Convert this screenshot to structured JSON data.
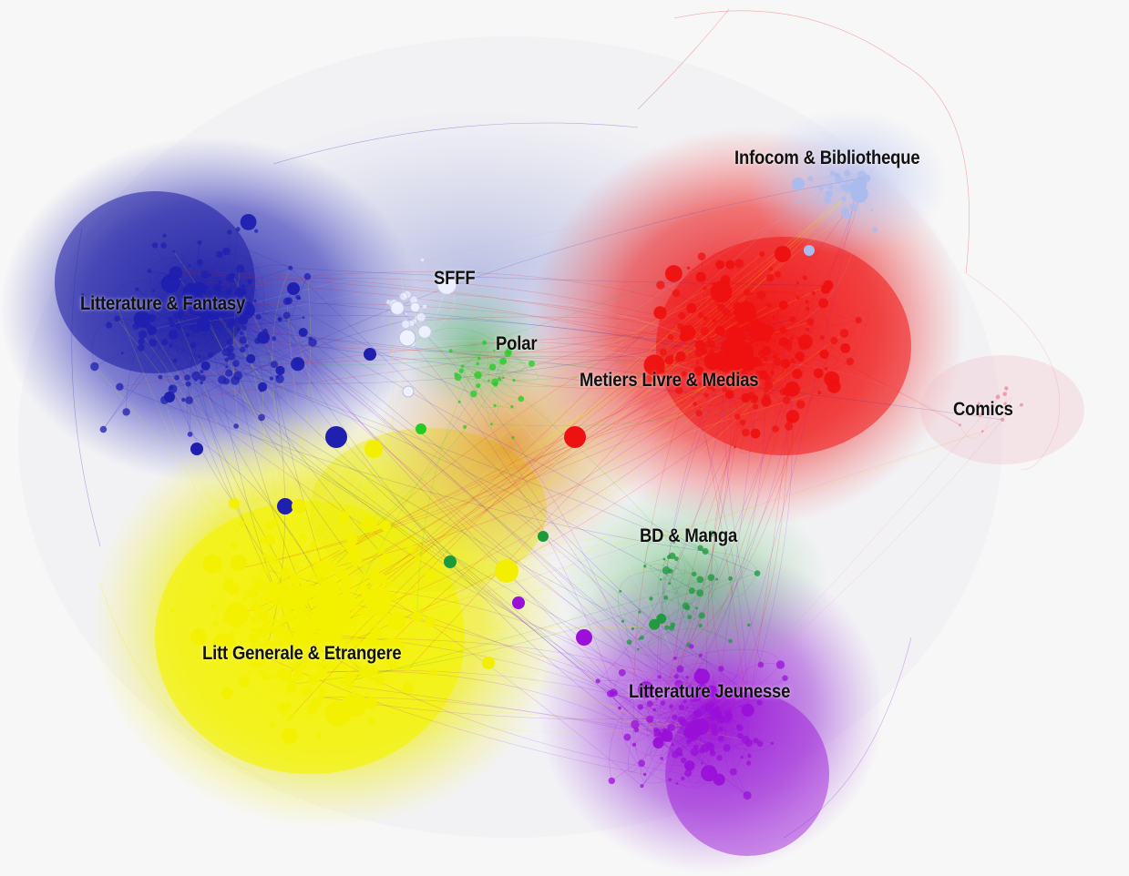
{
  "graph": {
    "clusters": [
      {
        "key": "litterature_fantasy",
        "label": "Litterature & Fantasy",
        "color": "#1f1fb0"
      },
      {
        "key": "sfff",
        "label": "SFFF",
        "color": "#eef2ff"
      },
      {
        "key": "polar",
        "label": "Polar",
        "color": "#22cc22"
      },
      {
        "key": "infocom",
        "label": "Infocom & Bibliotheque",
        "color": "#aabbee"
      },
      {
        "key": "metiers",
        "label": "Metiers Livre & Medias",
        "color": "#ee1111"
      },
      {
        "key": "comics",
        "label": "Comics",
        "color": "#e88a9a"
      },
      {
        "key": "bd_manga",
        "label": "BD & Manga",
        "color": "#1a9a3a"
      },
      {
        "key": "litt_generale",
        "label": "Litt Generale & Etrangere",
        "color": "#f2f000"
      },
      {
        "key": "jeunesse",
        "label": "Litterature Jeunesse",
        "color": "#9a10d8"
      }
    ]
  }
}
